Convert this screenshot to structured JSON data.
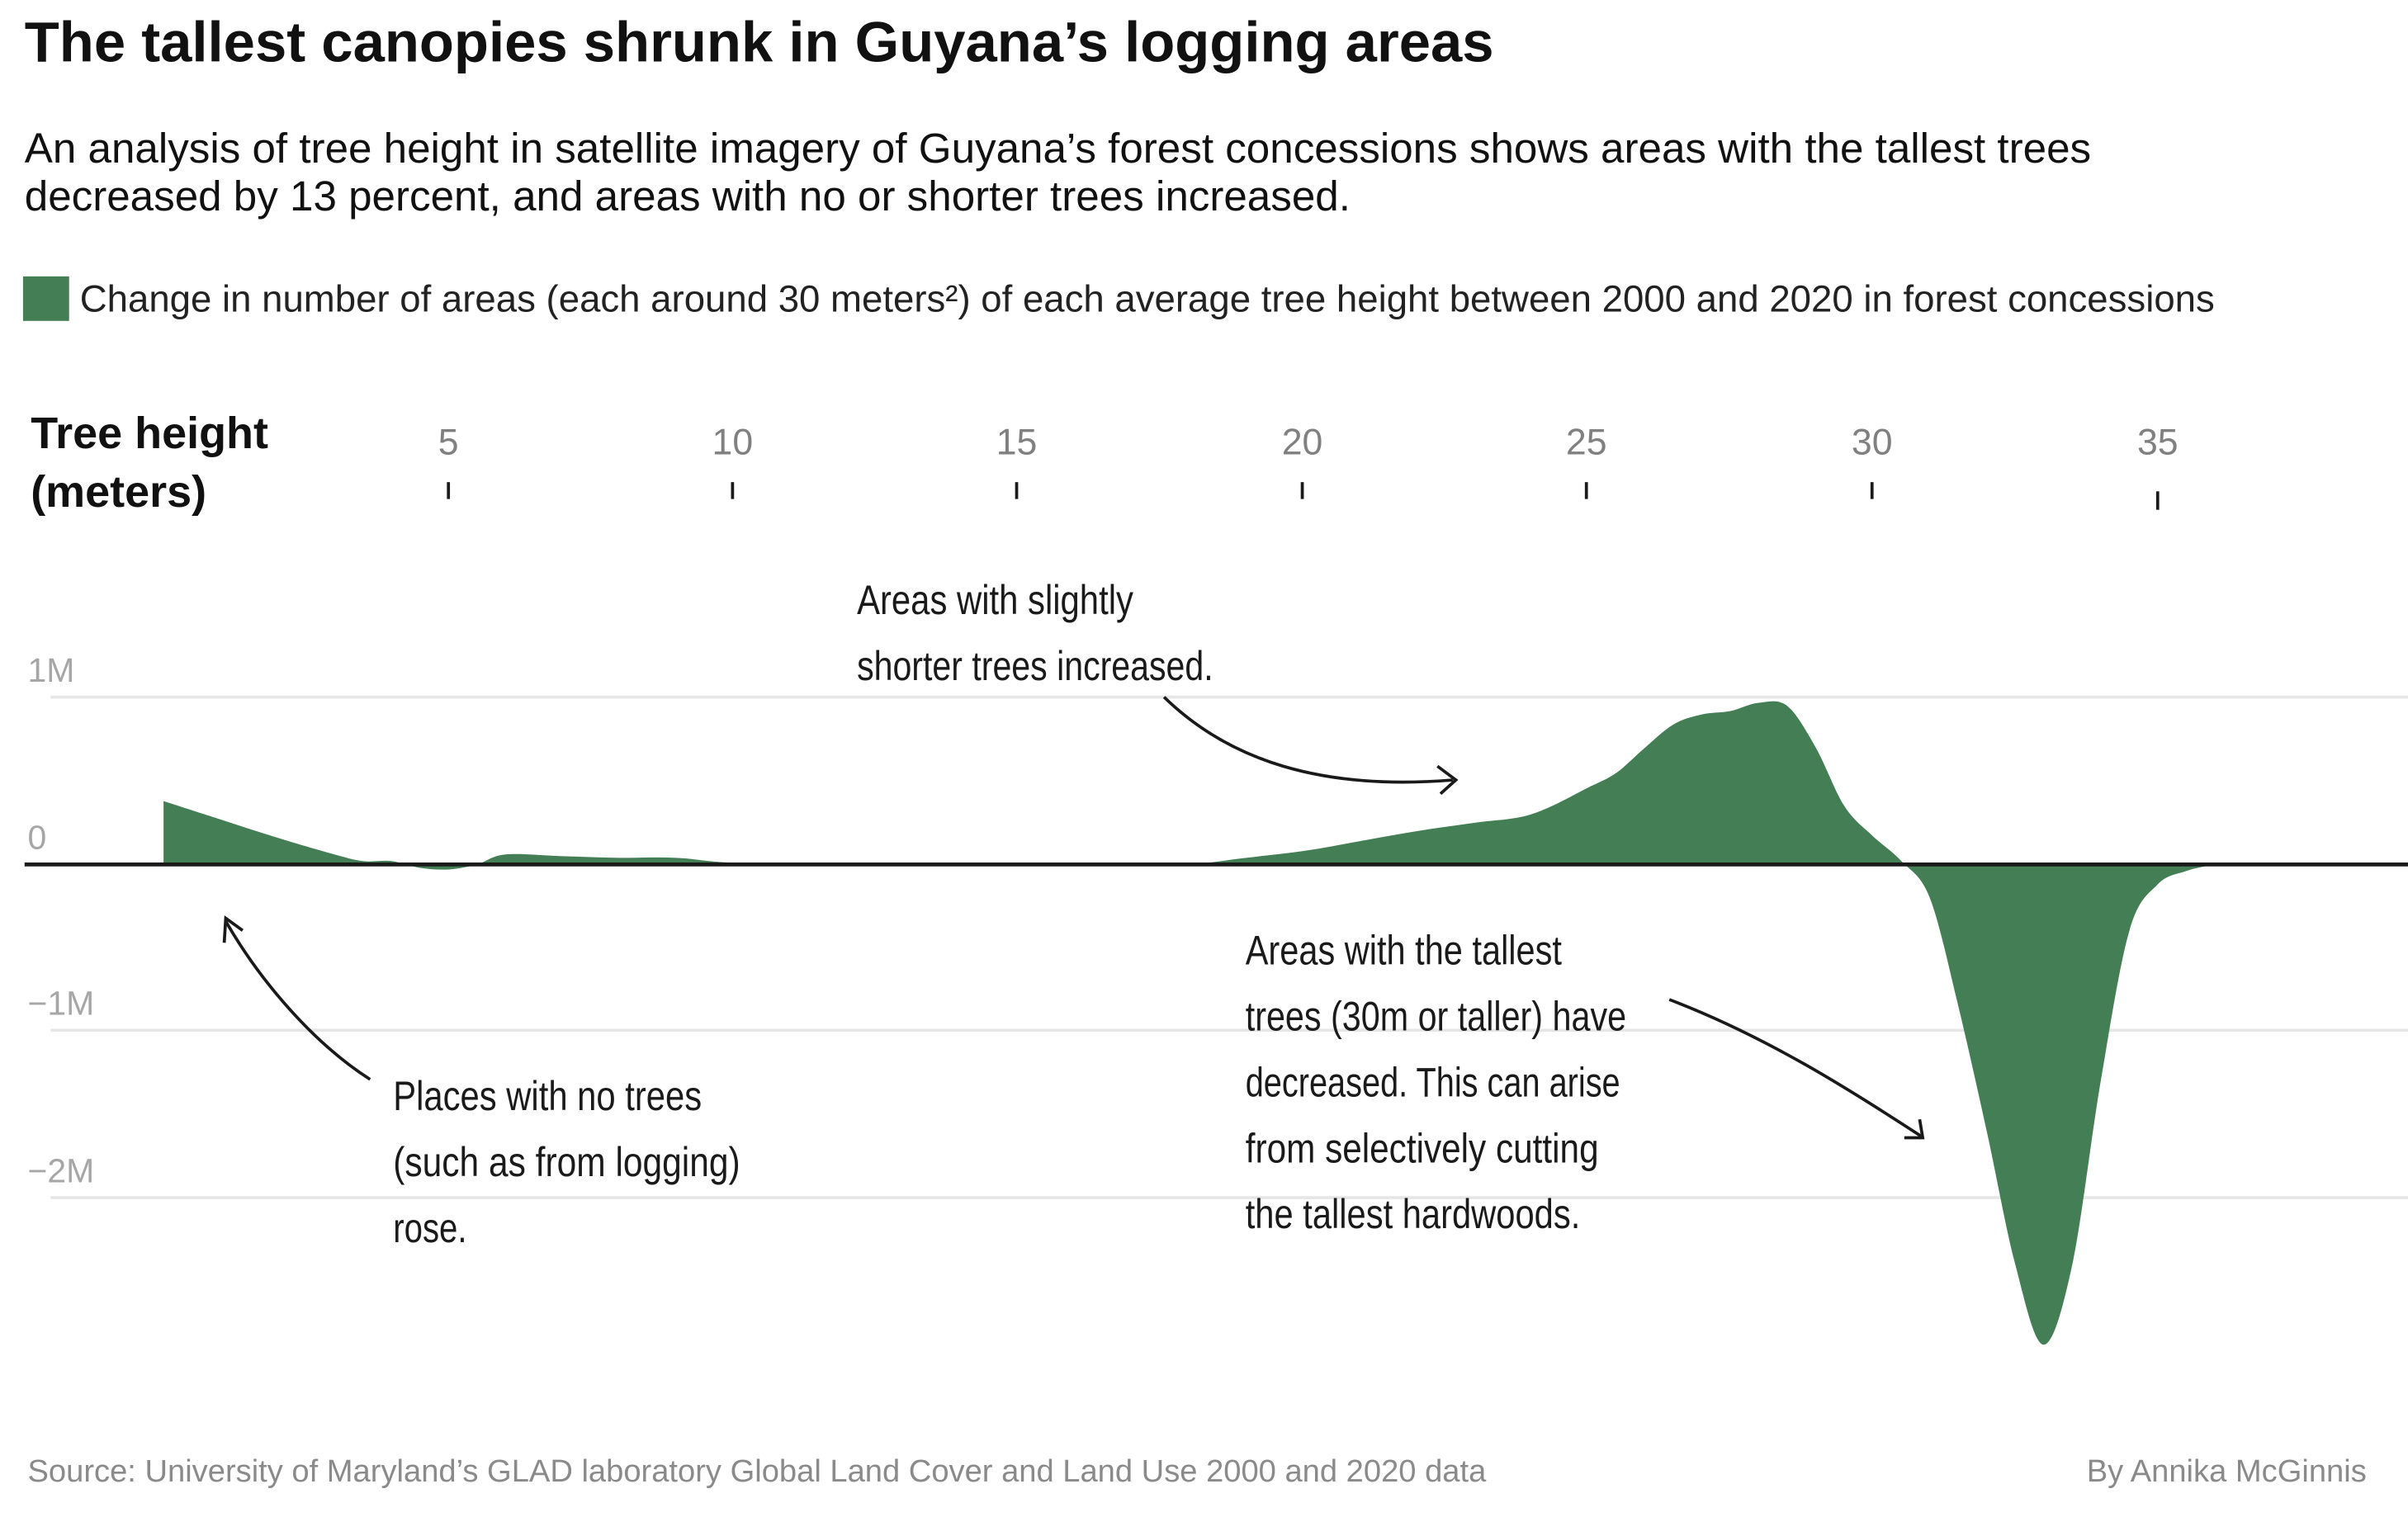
{
  "header": {
    "title": "The tallest canopies shrunk in Guyana’s logging areas",
    "subtitle_lines": [
      "An analysis of tree height in satellite imagery of Guyana’s forest concessions shows areas with the tallest trees",
      "decreased by 13 percent, and areas with no or shorter trees increased."
    ]
  },
  "legend": {
    "label": "Change in number of areas (each around 30 meters²) of each average tree height between 2000 and 2020 in forest concessions",
    "color": "#437e54"
  },
  "axes": {
    "x_title_lines": [
      "Tree height",
      "(meters)"
    ],
    "x_ticks": [
      "5",
      "10",
      "15",
      "20",
      "25",
      "30",
      "35"
    ],
    "y_ticks": [
      "1M",
      "0",
      "−1M",
      "−2M"
    ]
  },
  "annotations": {
    "shorter_trees": [
      "Areas with slightly",
      "shorter trees increased."
    ],
    "no_trees": [
      "Places with no trees",
      "(such as from logging)",
      "rose."
    ],
    "tallest_trees": [
      "Areas with the tallest",
      "trees (30m or taller) have",
      "decreased. This can arise",
      "from selectively cutting",
      "the tallest hardwoods."
    ]
  },
  "footer": {
    "source": "Source:  University of Maryland’s GLAD laboratory Global Land Cover and Land Use 2000 and 2020 data",
    "byline": "By Annika McGinnis"
  },
  "colors": {
    "area": "#437e54",
    "zero_line": "#1a1a1a",
    "grid": "#e6e6e6"
  },
  "chart_data": {
    "type": "area",
    "title": "The tallest canopies shrunk in Guyana’s logging areas",
    "subtitle": "An analysis of tree height in satellite imagery of Guyana’s forest concessions shows areas with the tallest trees decreased by 13 percent, and areas with no or shorter trees increased.",
    "xlabel": "Tree height (meters)",
    "ylabel": "Change in number of areas (each around 30 meters²), 2000 to 2020",
    "legend": [
      "Change in number of areas (each around 30 meters²) of each average tree height between 2000 and 2020 in forest concessions"
    ],
    "legend_position": "top",
    "grid": true,
    "xlim": [
      0,
      36
    ],
    "ylim": [
      -2.9,
      1.0
    ],
    "y_unit": "millions",
    "x_ticks": [
      5,
      10,
      15,
      20,
      25,
      30,
      35
    ],
    "y_ticks": [
      1,
      0,
      -1,
      -2
    ],
    "x": [
      0,
      1,
      2,
      3,
      3.5,
      4,
      4.5,
      5,
      5.5,
      6,
      7,
      8,
      9,
      10,
      12,
      14,
      15,
      16,
      17,
      18,
      19,
      20,
      21,
      22,
      23,
      24,
      25,
      25.5,
      26,
      26.5,
      27,
      27.5,
      28,
      28.5,
      29,
      29.5,
      30,
      30.5,
      31,
      31.5,
      32,
      32.5,
      33,
      33.5,
      34,
      34.5,
      35,
      35.5,
      36
    ],
    "series": [
      {
        "name": "Change in number of areas (millions)",
        "values": [
          0.38,
          0.27,
          0.16,
          0.06,
          0.02,
          0.02,
          -0.02,
          -0.03,
          0.0,
          0.06,
          0.05,
          0.04,
          0.04,
          0.01,
          0.0,
          0.01,
          0.01,
          0.01,
          0.0,
          0.0,
          0.04,
          0.08,
          0.14,
          0.2,
          0.25,
          0.3,
          0.46,
          0.55,
          0.7,
          0.84,
          0.9,
          0.92,
          0.97,
          0.95,
          0.7,
          0.35,
          0.17,
          0.02,
          -0.2,
          -0.85,
          -1.6,
          -2.4,
          -2.88,
          -2.4,
          -1.3,
          -0.4,
          -0.12,
          -0.04,
          0.0
        ]
      }
    ],
    "annotations": [
      "Areas with slightly shorter trees increased.",
      "Places with no trees (such as from logging) rose.",
      "Areas with the tallest trees (30m or taller) have decreased. This can arise from selectively cutting the tallest hardwoods."
    ],
    "source": "University of Maryland’s GLAD laboratory Global Land Cover and Land Use 2000 and 2020 data",
    "byline": "By Annika McGinnis"
  }
}
